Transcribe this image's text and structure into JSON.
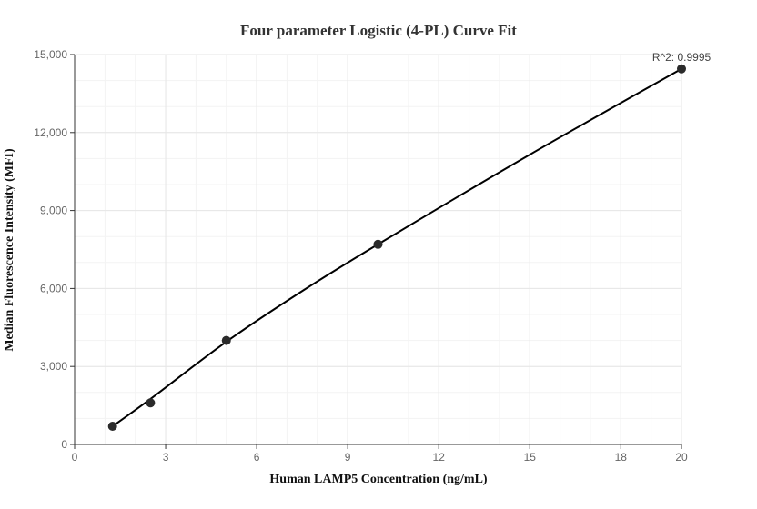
{
  "chart_data": {
    "type": "scatter",
    "title": "Four parameter Logistic (4-PL) Curve Fit",
    "xlabel": "Human LAMP5 Concentration (ng/mL)",
    "ylabel": "Median Fluorescence Intensity (MFI)",
    "xlim": [
      0,
      20
    ],
    "ylim": [
      0,
      15000
    ],
    "xticks": [
      0,
      3,
      6,
      9,
      12,
      15,
      18,
      20
    ],
    "xtick_labels": [
      "0",
      "3",
      "6",
      "9",
      "12",
      "15",
      "18",
      "20"
    ],
    "yticks": [
      0,
      3000,
      6000,
      9000,
      12000,
      15000
    ],
    "ytick_labels": [
      "0",
      "3,000",
      "6,000",
      "9,000",
      "12,000",
      "15,000"
    ],
    "grid": true,
    "annotation": "R^2: 0.9995",
    "points": [
      {
        "x": 1.25,
        "y": 700
      },
      {
        "x": 2.5,
        "y": 1600
      },
      {
        "x": 5,
        "y": 4000
      },
      {
        "x": 10,
        "y": 7700
      },
      {
        "x": 20,
        "y": 14450
      }
    ],
    "fit_curve": [
      {
        "x": 1.25,
        "y": 700
      },
      {
        "x": 2.5,
        "y": 1750
      },
      {
        "x": 5,
        "y": 3950
      },
      {
        "x": 7.5,
        "y": 5900
      },
      {
        "x": 10,
        "y": 7700
      },
      {
        "x": 15,
        "y": 11150
      },
      {
        "x": 20,
        "y": 14450
      }
    ]
  }
}
